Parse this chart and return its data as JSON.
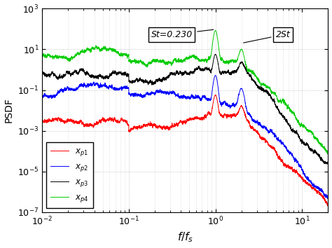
{
  "xlabel": "$f / f_s$",
  "ylabel": "PSDF",
  "xlim": [
    0.01,
    20
  ],
  "ylim": [
    1e-07,
    1000.0
  ],
  "colors": {
    "xp1": "#ff0000",
    "xp2": "#0000ff",
    "xp3": "#000000",
    "xp4": "#00cc00"
  },
  "legend_labels": [
    "$x_{p1}$",
    "$x_{p2}$",
    "$x_{p3}$",
    "$x_{p4}$"
  ],
  "St_freq": 1.0,
  "St_label": "St=0.230",
  "St2_label": "2St",
  "base_levels": {
    "xp1": 0.004,
    "xp2": 0.05,
    "xp3": 0.7,
    "xp4": 4.0
  },
  "peak1_heights": {
    "xp1": 0.05,
    "xp2": 0.5,
    "xp3": 5.0,
    "xp4": 80.0
  },
  "peak2_heights": {
    "xp1": 0.01,
    "xp2": 0.1,
    "xp3": 1.0,
    "xp4": 8.0
  },
  "rolloff_exp": 4.5,
  "rolloff_start": 2.0,
  "background_color": "#ffffff",
  "grid_color": "#888888"
}
